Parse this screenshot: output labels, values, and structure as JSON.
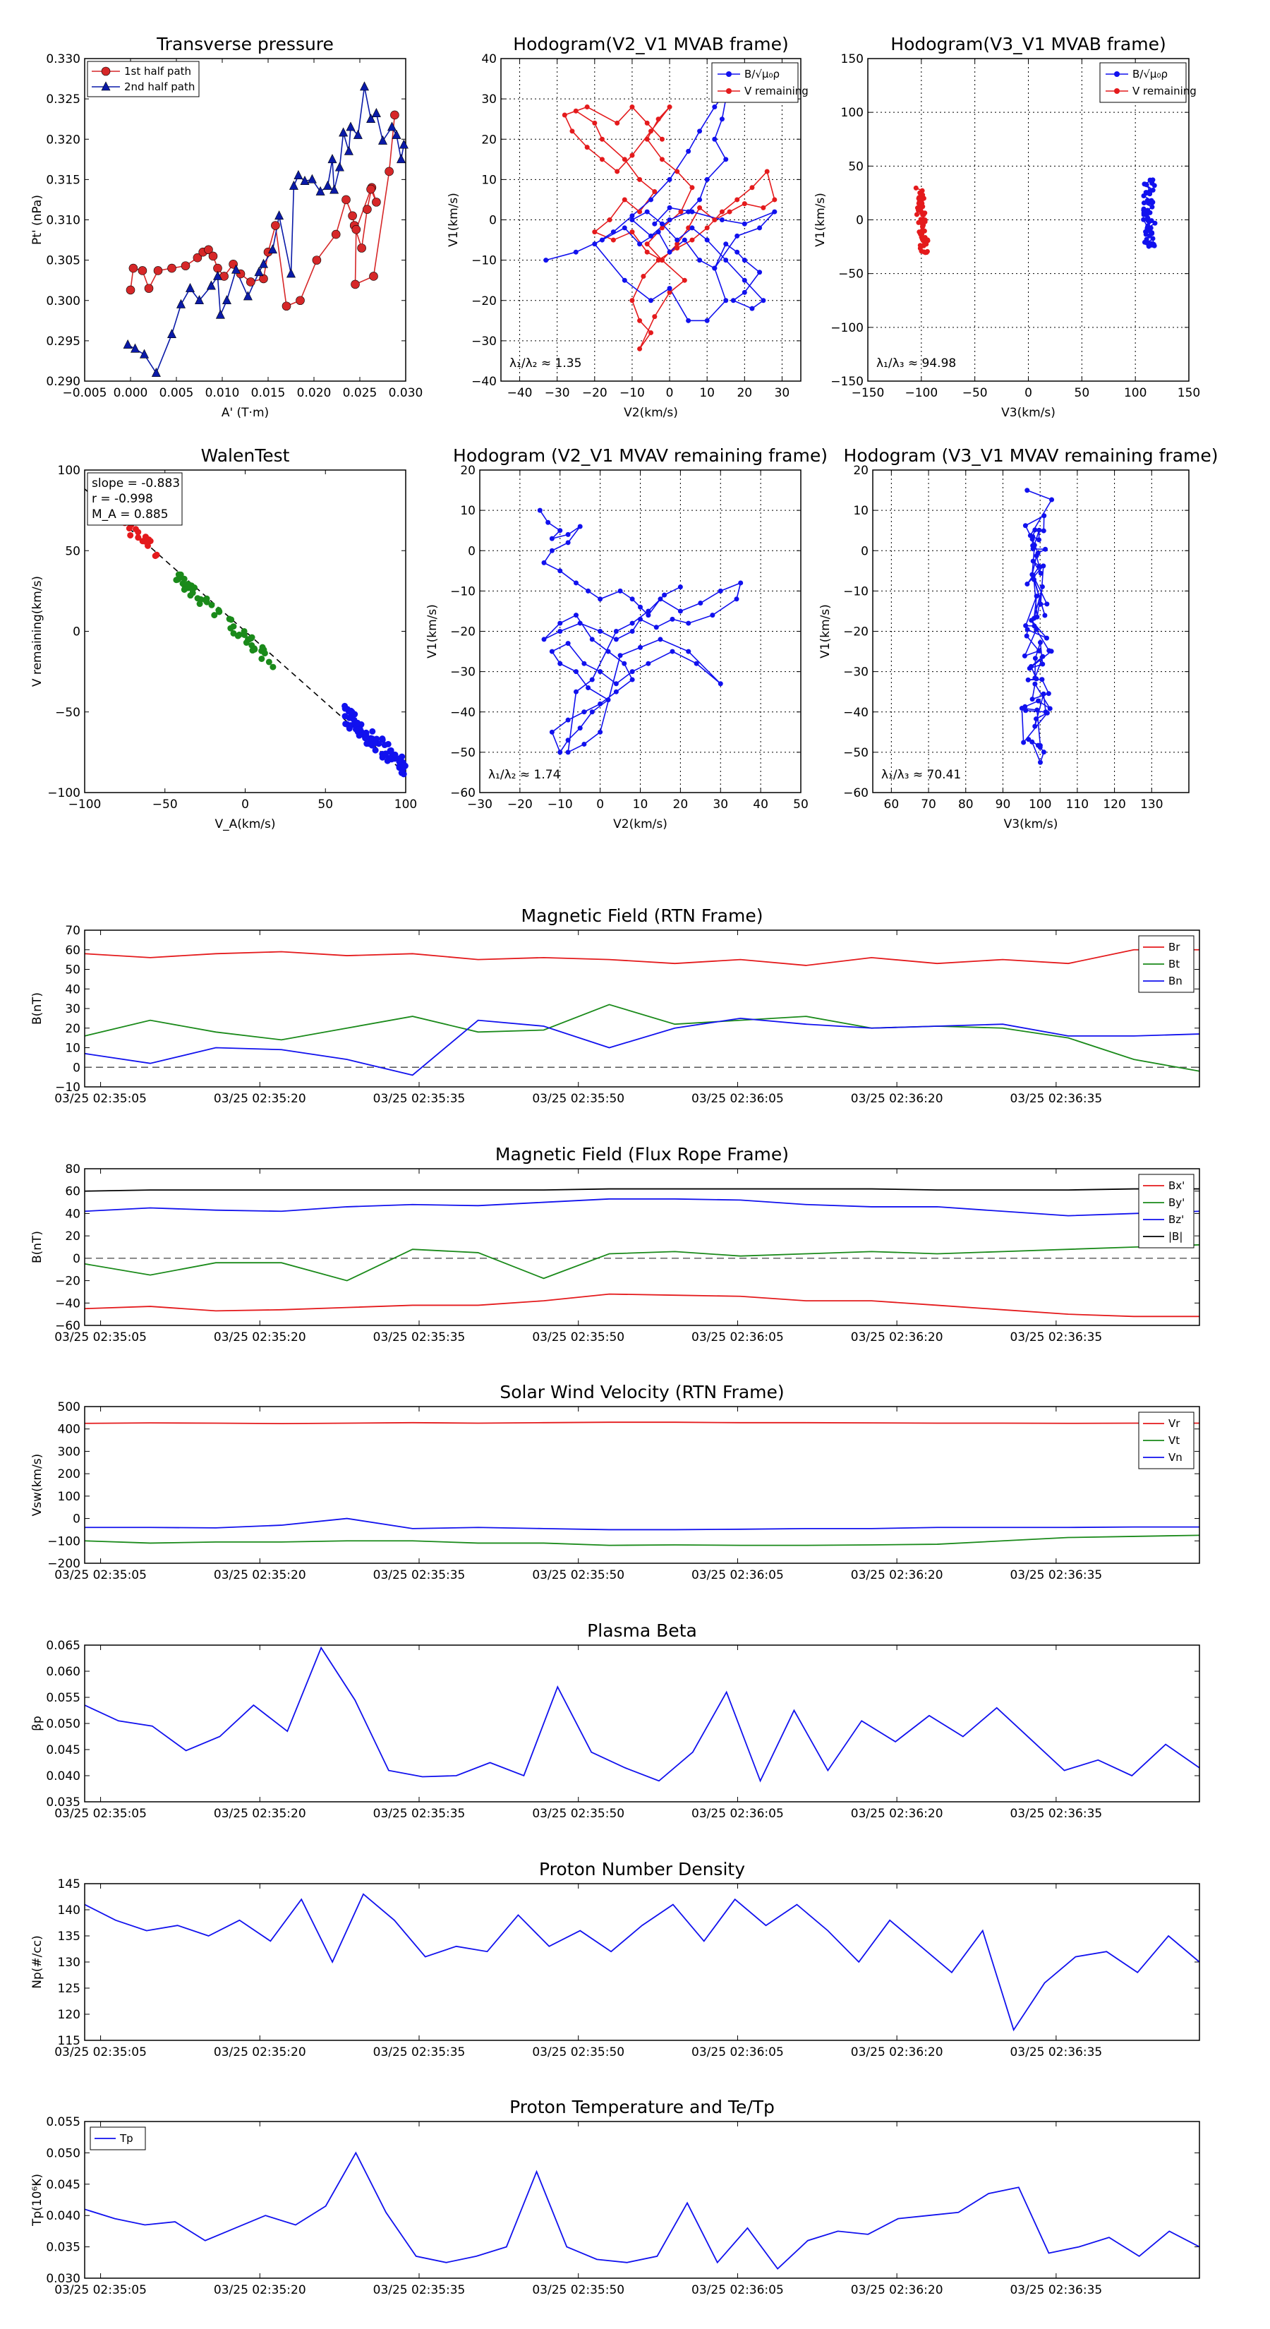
{
  "scatter_panels": [
    {
      "title": "Transverse pressure",
      "xlabel": "A' (T·m)",
      "ylabel": "Pt' (nPa)",
      "xlim": [
        -0.005,
        0.03
      ],
      "ylim": [
        0.29,
        0.33
      ],
      "xticks": [
        "−0.005",
        "0.000",
        "0.005",
        "0.010",
        "0.015",
        "0.020",
        "0.025",
        "0.030"
      ],
      "yticks": [
        "0.290",
        "0.295",
        "0.300",
        "0.305",
        "0.310",
        "0.315",
        "0.320",
        "0.325",
        "0.330"
      ],
      "grid": false,
      "legend": [
        "1st half path",
        "2nd half path"
      ],
      "colors": [
        "#d62728",
        "#0a1aa8"
      ]
    },
    {
      "title": "Hodogram(V2_V1 MVAB frame)",
      "xlabel": "V2(km/s)",
      "ylabel": "V1(km/s)",
      "xlim": [
        -45,
        35
      ],
      "ylim": [
        -40,
        40
      ],
      "xticks": [
        "−40",
        "−30",
        "−20",
        "−10",
        "0",
        "10",
        "20",
        "30"
      ],
      "yticks": [
        "−40",
        "−30",
        "−20",
        "−10",
        "0",
        "10",
        "20",
        "30",
        "40"
      ],
      "grid": true,
      "legend": [
        "B/√μ₀ρ",
        "V remaining"
      ],
      "annotation": "λ₁/λ₂ ≈ 1.35"
    },
    {
      "title": "Hodogram(V3_V1 MVAB frame)",
      "xlabel": "V3(km/s)",
      "ylabel": "V1(km/s)",
      "xlim": [
        -150,
        150
      ],
      "ylim": [
        -150,
        150
      ],
      "xticks": [
        "−150",
        "−100",
        "−50",
        "0",
        "50",
        "100",
        "150"
      ],
      "yticks": [
        "−150",
        "−100",
        "−50",
        "0",
        "50",
        "100",
        "150"
      ],
      "grid": true,
      "legend": [
        "B/√μ₀ρ",
        "V remaining"
      ],
      "annotation": "λ₁/λ₃ ≈ 94.98"
    },
    {
      "title": "WalenTest",
      "xlabel": "V_A(km/s)",
      "ylabel": "V remaining(km/s)",
      "xlim": [
        -100,
        100
      ],
      "ylim": [
        -100,
        100
      ],
      "xticks": [
        "−100",
        "−50",
        "0",
        "50",
        "100"
      ],
      "yticks": [
        "−100",
        "−50",
        "0",
        "50",
        "100"
      ],
      "grid": false,
      "stats": [
        "slope = -0.883",
        "r = -0.998",
        "M_A = 0.885"
      ]
    },
    {
      "title": "Hodogram (V2_V1 MVAV remaining frame)",
      "xlabel": "V2(km/s)",
      "ylabel": "V1(km/s)",
      "xlim": [
        -30,
        50
      ],
      "ylim": [
        -60,
        20
      ],
      "xticks": [
        "−30",
        "−20",
        "−10",
        "0",
        "10",
        "20",
        "30",
        "40",
        "50"
      ],
      "yticks": [
        "−60",
        "−50",
        "−40",
        "−30",
        "−20",
        "−10",
        "0",
        "10",
        "20"
      ],
      "grid": true,
      "annotation": "λ₁/λ₂ ≈ 1.74"
    },
    {
      "title": "Hodogram (V3_V1 MVAV remaining frame)",
      "xlabel": "V3(km/s)",
      "ylabel": "V1(km/s)",
      "xlim": [
        55,
        140
      ],
      "ylim": [
        -60,
        20
      ],
      "xticks": [
        "60",
        "70",
        "80",
        "90",
        "100",
        "110",
        "120",
        "130"
      ],
      "yticks": [
        "−60",
        "−50",
        "−40",
        "−30",
        "−20",
        "−10",
        "0",
        "10",
        "20"
      ],
      "grid": true,
      "annotation": "λ₁/λ₃ ≈ 70.41"
    }
  ],
  "time_ticks": [
    "03/25 02:35:05",
    "03/25 02:35:20",
    "03/25 02:35:35",
    "03/25 02:35:50",
    "03/25 02:36:05",
    "03/25 02:36:20",
    "03/25 02:36:35"
  ],
  "chart_data": [
    {
      "type": "line",
      "title": "Magnetic Field (RTN Frame)",
      "ylabel": "B(nT)",
      "ylim": [
        -10,
        70
      ],
      "yticks": [
        "−10",
        "0",
        "10",
        "20",
        "30",
        "40",
        "50",
        "60",
        "70"
      ],
      "zero_line": true,
      "series": [
        {
          "name": "Br",
          "color": "#e41a1c",
          "values": [
            58,
            56,
            58,
            59,
            57,
            58,
            55,
            56,
            55,
            53,
            55,
            52,
            56,
            53,
            55,
            53,
            60,
            60
          ]
        },
        {
          "name": "Bt",
          "color": "#1a8a1a",
          "values": [
            16,
            24,
            18,
            14,
            20,
            26,
            18,
            19,
            32,
            22,
            24,
            26,
            20,
            21,
            20,
            15,
            4,
            -2
          ]
        },
        {
          "name": "Bn",
          "color": "#1111ee",
          "values": [
            7,
            2,
            10,
            9,
            4,
            -4,
            24,
            21,
            10,
            20,
            25,
            22,
            20,
            21,
            22,
            16,
            16,
            17
          ]
        }
      ]
    },
    {
      "type": "line",
      "title": "Magnetic Field (Flux Rope Frame)",
      "ylabel": "B(nT)",
      "ylim": [
        -60,
        80
      ],
      "yticks": [
        "−60",
        "−40",
        "−20",
        "0",
        "20",
        "40",
        "60",
        "80"
      ],
      "zero_line": true,
      "series": [
        {
          "name": "Bx'",
          "color": "#e41a1c",
          "values": [
            -45,
            -43,
            -47,
            -46,
            -44,
            -42,
            -42,
            -38,
            -32,
            -33,
            -34,
            -38,
            -38,
            -42,
            -46,
            -50,
            -52,
            -52
          ]
        },
        {
          "name": "By'",
          "color": "#1a8a1a",
          "values": [
            -5,
            -15,
            -4,
            -4,
            -20,
            8,
            5,
            -18,
            4,
            6,
            2,
            4,
            6,
            4,
            6,
            8,
            10,
            12
          ]
        },
        {
          "name": "Bz'",
          "color": "#1111ee",
          "values": [
            42,
            45,
            43,
            42,
            46,
            48,
            47,
            50,
            53,
            53,
            52,
            48,
            46,
            46,
            42,
            38,
            40,
            42
          ]
        },
        {
          "name": "|B|",
          "color": "#000000",
          "values": [
            60,
            61,
            61,
            61,
            61,
            61,
            61,
            61,
            62,
            62,
            62,
            62,
            62,
            61,
            61,
            61,
            62,
            62
          ]
        }
      ]
    },
    {
      "type": "line",
      "title": "Solar Wind Velocity (RTN Frame)",
      "ylabel": "Vsw(km/s)",
      "ylim": [
        -200,
        500
      ],
      "yticks": [
        "−200",
        "−100",
        "0",
        "100",
        "200",
        "300",
        "400",
        "500"
      ],
      "zero_line": false,
      "series": [
        {
          "name": "Vr",
          "color": "#e41a1c",
          "values": [
            425,
            427,
            426,
            424,
            426,
            428,
            426,
            428,
            430,
            430,
            428,
            428,
            427,
            426,
            426,
            425,
            426,
            426
          ]
        },
        {
          "name": "Vt",
          "color": "#1a8a1a",
          "values": [
            -100,
            -110,
            -105,
            -105,
            -100,
            -100,
            -110,
            -110,
            -120,
            -118,
            -120,
            -120,
            -118,
            -115,
            -100,
            -85,
            -80,
            -75
          ]
        },
        {
          "name": "Vn",
          "color": "#1111ee",
          "values": [
            -40,
            -40,
            -42,
            -30,
            0,
            -45,
            -40,
            -45,
            -50,
            -50,
            -48,
            -45,
            -45,
            -40,
            -40,
            -40,
            -38,
            -38
          ]
        }
      ]
    },
    {
      "type": "line",
      "title": "Plasma Beta",
      "ylabel": "βp",
      "ylim": [
        0.035,
        0.065
      ],
      "yticks": [
        "0.035",
        "0.040",
        "0.045",
        "0.050",
        "0.055",
        "0.060",
        "0.065"
      ],
      "zero_line": false,
      "series": [
        {
          "name": "βp",
          "color": "#1111ee",
          "values": [
            0.0535,
            0.0505,
            0.0495,
            0.0448,
            0.0475,
            0.0535,
            0.0485,
            0.0645,
            0.0545,
            0.041,
            0.0398,
            0.04,
            0.0425,
            0.04,
            0.057,
            0.0445,
            0.0415,
            0.039,
            0.0445,
            0.056,
            0.039,
            0.0525,
            0.041,
            0.0505,
            0.0465,
            0.0515,
            0.0475,
            0.053,
            0.047,
            0.041,
            0.043,
            0.04,
            0.046,
            0.0415
          ]
        }
      ]
    },
    {
      "type": "line",
      "title": "Proton Number Density",
      "ylabel": "Np(#/cc)",
      "ylim": [
        115,
        145
      ],
      "yticks": [
        "115",
        "120",
        "125",
        "130",
        "135",
        "140",
        "145"
      ],
      "zero_line": false,
      "series": [
        {
          "name": "Np",
          "color": "#1111ee",
          "values": [
            141,
            138,
            136,
            137,
            135,
            138,
            134,
            142,
            130,
            143,
            138,
            131,
            133,
            132,
            139,
            133,
            136,
            132,
            137,
            141,
            134,
            142,
            137,
            141,
            136,
            130,
            138,
            133,
            128,
            136,
            117,
            126,
            131,
            132,
            128,
            135,
            130
          ]
        }
      ]
    },
    {
      "type": "line",
      "title": "Proton Temperature and Te/Tp",
      "ylabel": "Tp(10⁶K)",
      "ylim": [
        0.03,
        0.055
      ],
      "yticks": [
        "0.030",
        "0.035",
        "0.040",
        "0.045",
        "0.050",
        "0.055"
      ],
      "zero_line": false,
      "legend_pos": "top-left",
      "series": [
        {
          "name": "Tp",
          "color": "#1111ee",
          "values": [
            0.041,
            0.0395,
            0.0385,
            0.039,
            0.036,
            0.038,
            0.04,
            0.0385,
            0.0415,
            0.05,
            0.0405,
            0.0335,
            0.0325,
            0.0335,
            0.035,
            0.047,
            0.035,
            0.033,
            0.0325,
            0.0335,
            0.042,
            0.0325,
            0.038,
            0.0315,
            0.036,
            0.0375,
            0.037,
            0.0395,
            0.04,
            0.0405,
            0.0435,
            0.0445,
            0.034,
            0.035,
            0.0365,
            0.0335,
            0.0375,
            0.035
          ]
        }
      ]
    }
  ]
}
